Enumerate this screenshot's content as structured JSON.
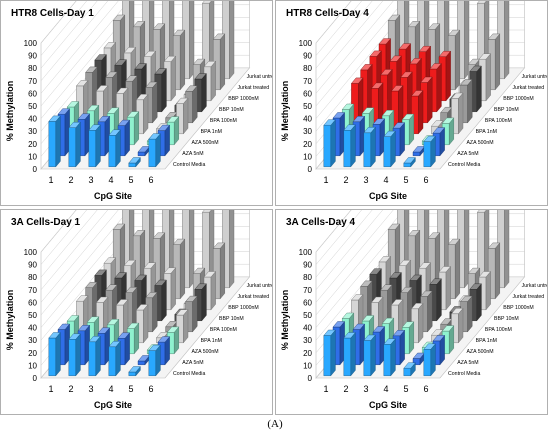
{
  "figure_label": "(A)",
  "colors": {
    "control": "#29a8ff",
    "aza5": "#2f6ee8",
    "aza500": "#8ff2cf",
    "grey_light": "#d6d6d6",
    "grey_mid": "#9a9a9a",
    "grey_dark": "#4a4a4a",
    "red": "#ee1c1c",
    "jurkat_treated": "#b8b8b8",
    "jurkat_untreated": "#cfcfcf"
  },
  "chart_data": [
    {
      "type": "bar3d",
      "title": "HTR8 Cells-Day 1",
      "xlabel": "CpG Site",
      "ylabel": "% Methylation",
      "ylim": [
        0,
        100
      ],
      "yticks": [
        "0",
        "10",
        "20",
        "30",
        "40",
        "50",
        "60",
        "70",
        "80",
        "90",
        "100"
      ],
      "categories": [
        "1",
        "2",
        "3",
        "4",
        "5",
        "6"
      ],
      "series": [
        {
          "name": "Control Media",
          "values": [
            36,
            31,
            29,
            25,
            3,
            22
          ]
        },
        {
          "name": "AZA 5nM",
          "values": [
            33,
            29,
            27,
            24,
            3,
            20
          ]
        },
        {
          "name": "AZA 500nM",
          "values": [
            30,
            27,
            25,
            22,
            3,
            18
          ]
        },
        {
          "name": "BPA 1nM",
          "values": [
            38,
            34,
            32,
            27,
            4,
            24
          ]
        },
        {
          "name": "BPA 100nM",
          "values": [
            40,
            36,
            33,
            28,
            4,
            25
          ]
        },
        {
          "name": "BBP 10nM",
          "values": [
            41,
            37,
            34,
            30,
            5,
            26
          ]
        },
        {
          "name": "BBP 1000nM",
          "values": [
            42,
            38,
            35,
            31,
            5,
            27
          ]
        },
        {
          "name": "Jurkat treated",
          "values": [
            55,
            50,
            48,
            43,
            20,
            40
          ]
        },
        {
          "name": "Jurkat untreated",
          "values": [
            95,
            88,
            86,
            82,
            60,
            80
          ]
        }
      ]
    },
    {
      "type": "bar3d",
      "title": "HTR8 Cells-Day 4",
      "xlabel": "CpG Site",
      "ylabel": "% Methylation",
      "ylim": [
        0,
        100
      ],
      "yticks": [
        "0",
        "10",
        "20",
        "30",
        "40",
        "50",
        "60",
        "70",
        "80",
        "90",
        "100"
      ],
      "categories": [
        "1",
        "2",
        "3",
        "4",
        "5",
        "6"
      ],
      "series": [
        {
          "name": "Control Media",
          "values": [
            33,
            29,
            27,
            24,
            3,
            20
          ]
        },
        {
          "name": "AZA 5nM",
          "values": [
            30,
            27,
            25,
            22,
            3,
            18
          ]
        },
        {
          "name": "AZA 500nM",
          "values": [
            28,
            25,
            23,
            20,
            3,
            17
          ]
        },
        {
          "name": "BPA 1nM",
          "values": [
            40,
            36,
            34,
            30,
            6,
            28
          ]
        },
        {
          "name": "BPA 100nM",
          "values": [
            42,
            38,
            36,
            32,
            8,
            30
          ]
        },
        {
          "name": "BBP 10nM",
          "values": [
            44,
            40,
            38,
            34,
            10,
            32
          ]
        },
        {
          "name": "BBP 1000nM",
          "values": [
            45,
            41,
            39,
            35,
            12,
            33
          ]
        },
        {
          "name": "Jurkat treated",
          "values": [
            55,
            50,
            48,
            43,
            20,
            40
          ]
        },
        {
          "name": "Jurkat untreated",
          "values": [
            95,
            88,
            86,
            82,
            60,
            80
          ]
        }
      ]
    },
    {
      "type": "bar3d",
      "title": "3A Cells-Day 1",
      "xlabel": "CpG Site",
      "ylabel": "% Methylation",
      "ylim": [
        0,
        100
      ],
      "yticks": [
        "0",
        "10",
        "20",
        "30",
        "40",
        "50",
        "60",
        "70",
        "80",
        "90",
        "100"
      ],
      "categories": [
        "1",
        "2",
        "3",
        "4",
        "5",
        "6"
      ],
      "series": [
        {
          "name": "Control Media",
          "values": [
            30,
            29,
            27,
            23,
            3,
            20
          ]
        },
        {
          "name": "AZA 5nM",
          "values": [
            28,
            27,
            25,
            21,
            3,
            18
          ]
        },
        {
          "name": "AZA 500nM",
          "values": [
            26,
            25,
            23,
            20,
            3,
            17
          ]
        },
        {
          "name": "BPA 1nM",
          "values": [
            33,
            32,
            30,
            26,
            4,
            22
          ]
        },
        {
          "name": "BPA 100nM",
          "values": [
            35,
            33,
            31,
            27,
            4,
            24
          ]
        },
        {
          "name": "BBP 10nM",
          "values": [
            36,
            34,
            32,
            28,
            5,
            25
          ]
        },
        {
          "name": "BBP 1000nM",
          "values": [
            37,
            35,
            33,
            29,
            5,
            26
          ]
        },
        {
          "name": "Jurkat treated",
          "values": [
            55,
            50,
            48,
            43,
            20,
            40
          ]
        },
        {
          "name": "Jurkat untreated",
          "values": [
            95,
            88,
            86,
            82,
            60,
            80
          ]
        }
      ]
    },
    {
      "type": "bar3d",
      "title": "3A Cells-Day 4",
      "xlabel": "CpG Site",
      "ylabel": "% Methylation",
      "ylim": [
        0,
        100
      ],
      "yticks": [
        "0",
        "10",
        "20",
        "30",
        "40",
        "50",
        "60",
        "70",
        "80",
        "90",
        "100"
      ],
      "categories": [
        "1",
        "2",
        "3",
        "4",
        "5",
        "6"
      ],
      "series": [
        {
          "name": "Control Media",
          "values": [
            32,
            30,
            28,
            25,
            6,
            21
          ]
        },
        {
          "name": "AZA 5nM",
          "values": [
            30,
            28,
            26,
            23,
            5,
            19
          ]
        },
        {
          "name": "AZA 500nM",
          "values": [
            28,
            26,
            24,
            21,
            5,
            18
          ]
        },
        {
          "name": "BPA 1nM",
          "values": [
            34,
            32,
            30,
            27,
            6,
            23
          ]
        },
        {
          "name": "BPA 100nM",
          "values": [
            36,
            33,
            31,
            28,
            6,
            24
          ]
        },
        {
          "name": "BBP 10nM",
          "values": [
            37,
            34,
            32,
            29,
            7,
            25
          ]
        },
        {
          "name": "BBP 1000nM",
          "values": [
            38,
            35,
            33,
            30,
            7,
            26
          ]
        },
        {
          "name": "Jurkat treated",
          "values": [
            55,
            50,
            48,
            43,
            20,
            40
          ]
        },
        {
          "name": "Jurkat untreated",
          "values": [
            95,
            88,
            86,
            82,
            60,
            80
          ]
        }
      ]
    }
  ]
}
